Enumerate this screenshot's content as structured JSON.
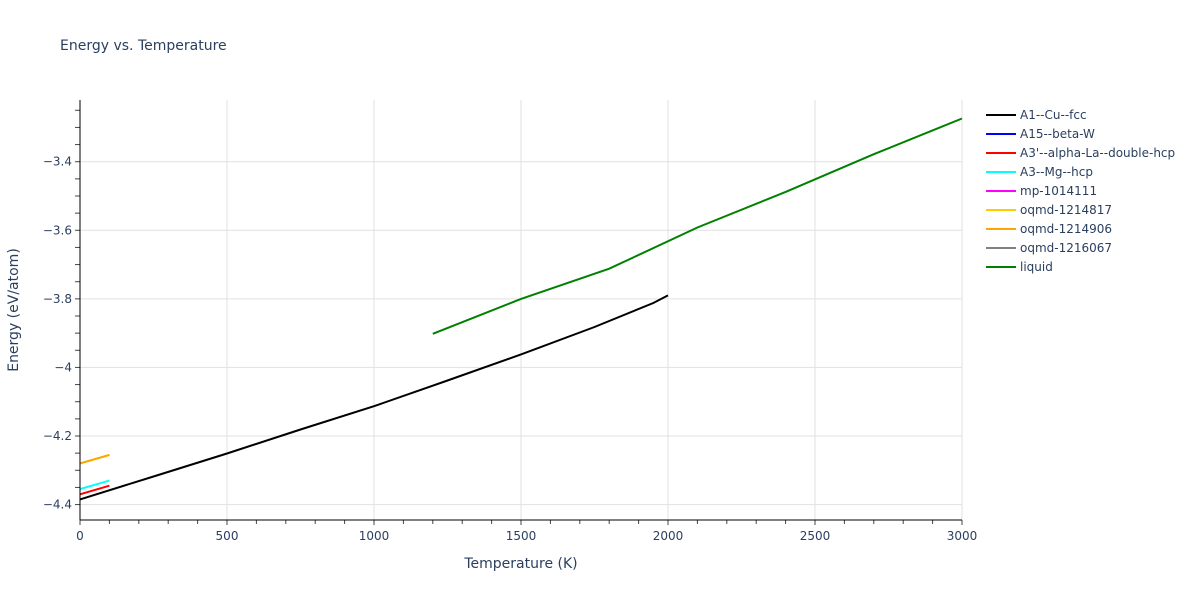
{
  "chart_data": {
    "type": "line",
    "title": "Energy vs. Temperature",
    "xlabel": "Temperature (K)",
    "ylabel": "Energy (eV/atom)",
    "xlim": [
      0,
      3000
    ],
    "ylim": [
      -4.445,
      -3.22
    ],
    "xticks": [
      0,
      500,
      1000,
      1500,
      2000,
      2500,
      3000
    ],
    "xtick_labels": [
      "0",
      "500",
      "1000",
      "1500",
      "2000",
      "2500",
      "3000"
    ],
    "yticks": [
      -4.4,
      -4.2,
      -4.0,
      -3.8,
      -3.6,
      -3.4
    ],
    "ytick_labels": [
      "−4.4",
      "−4.2",
      "−4",
      "−3.8",
      "−3.6",
      "−3.4"
    ],
    "grid": true,
    "legend_position": "right",
    "series": [
      {
        "name": "A1--Cu--fcc",
        "color": "#000000",
        "x": [
          0,
          250,
          500,
          750,
          1000,
          1250,
          1500,
          1750,
          1950,
          2000
        ],
        "y": [
          -4.385,
          -4.318,
          -4.251,
          -4.181,
          -4.113,
          -4.038,
          -3.962,
          -3.882,
          -3.812,
          -3.79
        ]
      },
      {
        "name": "A15--beta-W",
        "color": "#0000ff",
        "x": [],
        "y": []
      },
      {
        "name": "A3'--alpha-La--double-hcp",
        "color": "#ff0000",
        "x": [
          0,
          100
        ],
        "y": [
          -4.37,
          -4.345
        ]
      },
      {
        "name": "A3--Mg--hcp",
        "color": "#00ffff",
        "x": [
          0,
          100
        ],
        "y": [
          -4.355,
          -4.33
        ]
      },
      {
        "name": "mp-1014111",
        "color": "#ff00ff",
        "x": [],
        "y": []
      },
      {
        "name": "oqmd-1214817",
        "color": "#ffcc00",
        "x": [
          0,
          100
        ],
        "y": [
          -4.28,
          -4.255
        ]
      },
      {
        "name": "oqmd-1214906",
        "color": "#ffa500",
        "x": [
          0,
          100
        ],
        "y": [
          -4.28,
          -4.255
        ]
      },
      {
        "name": "oqmd-1216067",
        "color": "#808080",
        "x": [],
        "y": []
      },
      {
        "name": "liquid",
        "color": "#008000",
        "x": [
          1200,
          1500,
          1800,
          2100,
          2400,
          2700,
          3000
        ],
        "y": [
          -3.902,
          -3.8,
          -3.712,
          -3.592,
          -3.488,
          -3.378,
          -3.274
        ]
      }
    ]
  }
}
